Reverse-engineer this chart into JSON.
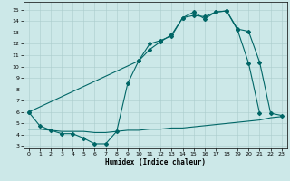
{
  "xlabel": "Humidex (Indice chaleur)",
  "bg_color": "#cce8e8",
  "line_color": "#006666",
  "grid_color": "#aacccc",
  "xlim": [
    -0.5,
    23.5
  ],
  "ylim": [
    2.8,
    15.7
  ],
  "yticks": [
    3,
    4,
    5,
    6,
    7,
    8,
    9,
    10,
    11,
    12,
    13,
    14,
    15
  ],
  "xticks": [
    0,
    1,
    2,
    3,
    4,
    5,
    6,
    7,
    8,
    9,
    10,
    11,
    12,
    13,
    14,
    15,
    16,
    17,
    18,
    19,
    20,
    21,
    22,
    23
  ],
  "series1_x": [
    0,
    1,
    2,
    3,
    4,
    5,
    6,
    7,
    8,
    9,
    10,
    11,
    12,
    13,
    14,
    15,
    16,
    17,
    18,
    19,
    20,
    21
  ],
  "series1_y": [
    6.0,
    4.8,
    4.4,
    4.1,
    4.1,
    3.7,
    3.2,
    3.2,
    4.3,
    8.5,
    10.5,
    12.0,
    12.3,
    12.7,
    14.3,
    14.8,
    14.2,
    14.8,
    14.9,
    13.2,
    10.3,
    5.9
  ],
  "series2_x": [
    0,
    10,
    11,
    12,
    13,
    14,
    15,
    16,
    17,
    18,
    19,
    20,
    21,
    22,
    23
  ],
  "series2_y": [
    6.0,
    10.5,
    11.5,
    12.2,
    12.8,
    14.3,
    14.5,
    14.4,
    14.8,
    14.9,
    13.3,
    13.1,
    10.4,
    5.9,
    5.7
  ],
  "series3_x": [
    0,
    1,
    2,
    3,
    4,
    5,
    6,
    7,
    8,
    9,
    10,
    11,
    12,
    13,
    14,
    15,
    16,
    17,
    18,
    19,
    20,
    21,
    22,
    23
  ],
  "series3_y": [
    4.5,
    4.5,
    4.4,
    4.3,
    4.3,
    4.3,
    4.2,
    4.2,
    4.3,
    4.4,
    4.4,
    4.5,
    4.5,
    4.6,
    4.6,
    4.7,
    4.8,
    4.9,
    5.0,
    5.1,
    5.2,
    5.3,
    5.5,
    5.6
  ]
}
